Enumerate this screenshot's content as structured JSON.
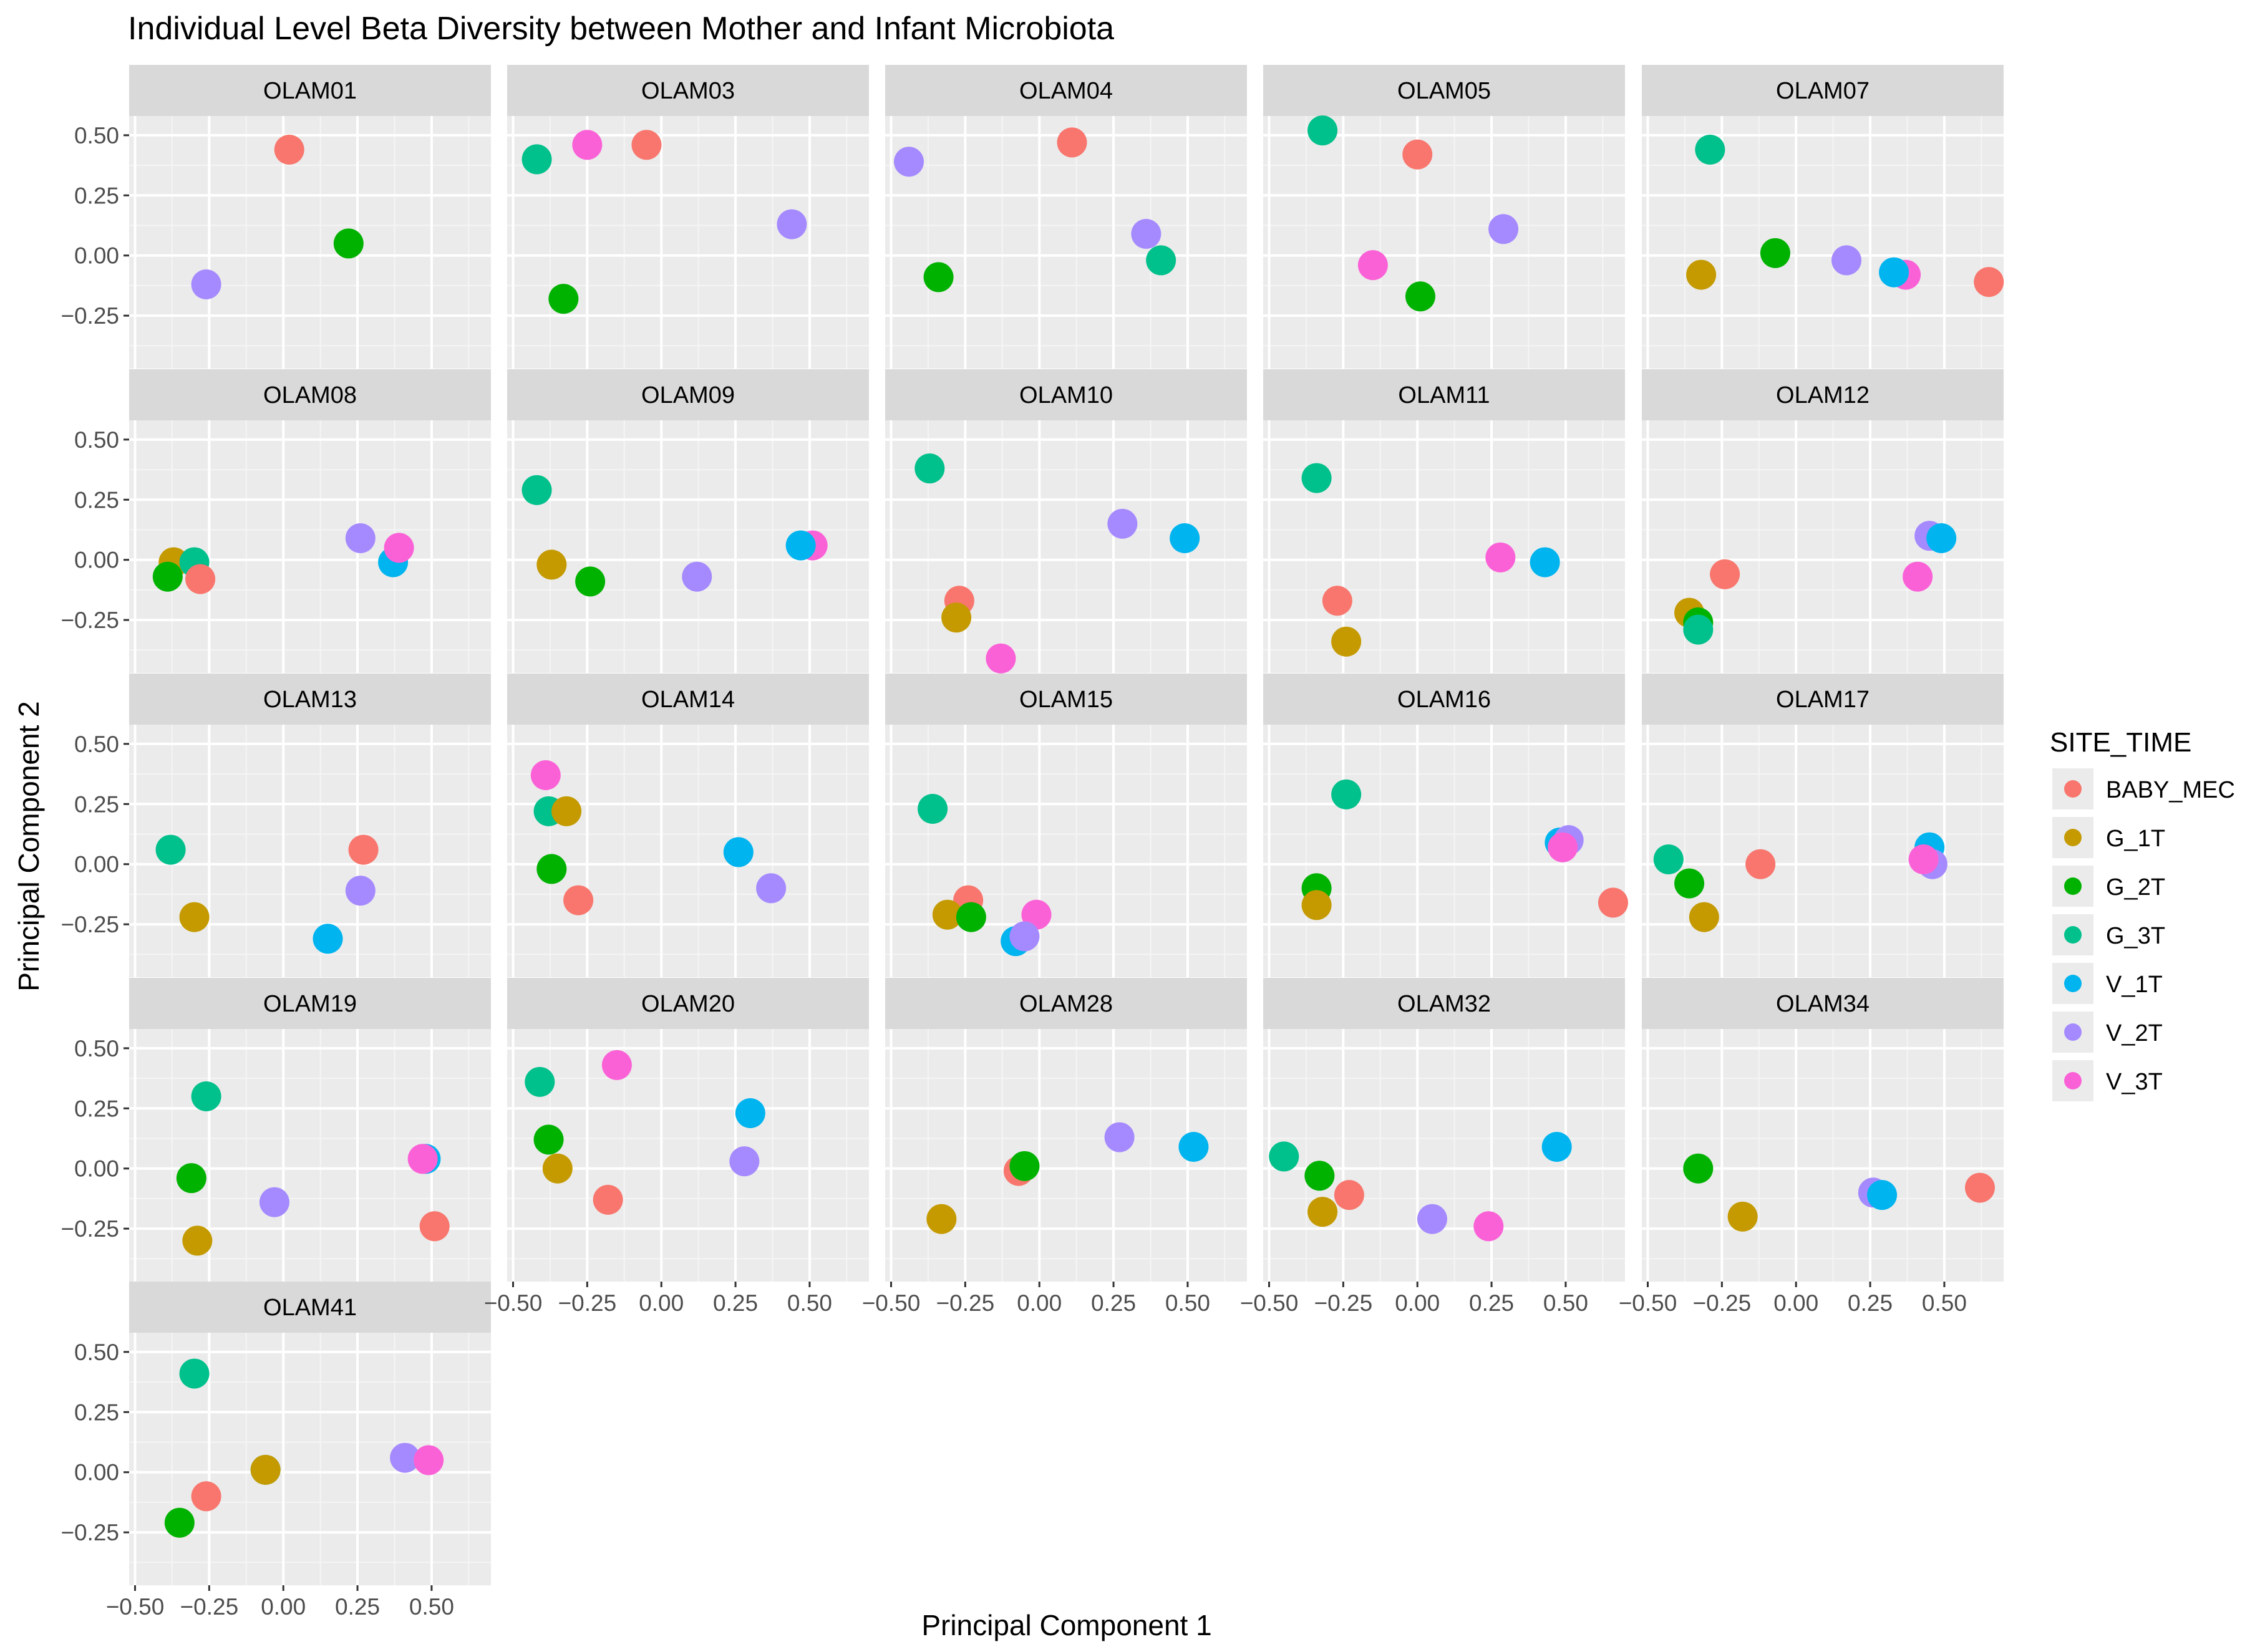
{
  "chart_data": {
    "type": "scatter",
    "title": "Individual Level Beta Diversity between Mother and Infant Microbiota",
    "xlabel": "Principal Component 1",
    "ylabel": "Principal Component 2",
    "xlim": [
      -0.52,
      0.7
    ],
    "ylim": [
      -0.47,
      0.58
    ],
    "xticks": [
      -0.5,
      -0.25,
      0,
      0.25,
      0.5
    ],
    "xtick_labels": [
      "−0.50",
      "−0.25",
      "0.00",
      "0.25",
      "0.50"
    ],
    "yticks": [
      0.5,
      0.25,
      0,
      -0.25
    ],
    "ytick_labels": [
      "0.50",
      "0.25",
      "0.00",
      "−0.25"
    ],
    "legend": {
      "title": "SITE_TIME",
      "position": "right",
      "entries": [
        {
          "label": "BABY_MEC",
          "color": "#F8766D"
        },
        {
          "label": "G_1T",
          "color": "#C49A00"
        },
        {
          "label": "G_2T",
          "color": "#00B200"
        },
        {
          "label": "G_3T",
          "color": "#00C08B"
        },
        {
          "label": "V_1T",
          "color": "#00B4EF"
        },
        {
          "label": "V_2T",
          "color": "#A58AFF"
        },
        {
          "label": "V_3T",
          "color": "#FB61D7"
        }
      ]
    },
    "panels": [
      {
        "name": "OLAM01",
        "points": [
          {
            "g": "BABY_MEC",
            "x": 0.02,
            "y": 0.44
          },
          {
            "g": "G_2T",
            "x": 0.22,
            "y": 0.05
          },
          {
            "g": "V_2T",
            "x": -0.26,
            "y": -0.12
          }
        ]
      },
      {
        "name": "OLAM03",
        "points": [
          {
            "g": "G_3T",
            "x": -0.42,
            "y": 0.4
          },
          {
            "g": "V_3T",
            "x": -0.25,
            "y": 0.46
          },
          {
            "g": "BABY_MEC",
            "x": -0.05,
            "y": 0.46
          },
          {
            "g": "G_2T",
            "x": -0.33,
            "y": -0.18
          },
          {
            "g": "V_2T",
            "x": 0.44,
            "y": 0.13
          }
        ]
      },
      {
        "name": "OLAM04",
        "points": [
          {
            "g": "V_2T",
            "x": -0.44,
            "y": 0.39
          },
          {
            "g": "BABY_MEC",
            "x": 0.11,
            "y": 0.47
          },
          {
            "g": "G_2T",
            "x": -0.34,
            "y": -0.09
          },
          {
            "g": "V_2T",
            "x": 0.36,
            "y": 0.09
          },
          {
            "g": "G_3T",
            "x": 0.41,
            "y": -0.02
          }
        ]
      },
      {
        "name": "OLAM05",
        "points": [
          {
            "g": "G_3T",
            "x": -0.32,
            "y": 0.52
          },
          {
            "g": "BABY_MEC",
            "x": 0.0,
            "y": 0.42
          },
          {
            "g": "V_3T",
            "x": -0.15,
            "y": -0.04
          },
          {
            "g": "G_2T",
            "x": 0.01,
            "y": -0.17
          },
          {
            "g": "V_2T",
            "x": 0.29,
            "y": 0.11
          }
        ]
      },
      {
        "name": "OLAM07",
        "points": [
          {
            "g": "G_3T",
            "x": -0.29,
            "y": 0.44
          },
          {
            "g": "G_1T",
            "x": -0.32,
            "y": -0.08
          },
          {
            "g": "G_2T",
            "x": -0.07,
            "y": 0.01
          },
          {
            "g": "V_2T",
            "x": 0.17,
            "y": -0.02
          },
          {
            "g": "V_3T",
            "x": 0.37,
            "y": -0.08
          },
          {
            "g": "V_1T",
            "x": 0.33,
            "y": -0.07
          },
          {
            "g": "BABY_MEC",
            "x": 0.65,
            "y": -0.11
          }
        ]
      },
      {
        "name": "OLAM08",
        "points": [
          {
            "g": "G_1T",
            "x": -0.37,
            "y": -0.01
          },
          {
            "g": "G_3T",
            "x": -0.3,
            "y": -0.01
          },
          {
            "g": "G_2T",
            "x": -0.39,
            "y": -0.07
          },
          {
            "g": "BABY_MEC",
            "x": -0.28,
            "y": -0.08
          },
          {
            "g": "V_2T",
            "x": 0.26,
            "y": 0.09
          },
          {
            "g": "V_1T",
            "x": 0.37,
            "y": -0.01
          },
          {
            "g": "V_3T",
            "x": 0.39,
            "y": 0.05
          }
        ]
      },
      {
        "name": "OLAM09",
        "points": [
          {
            "g": "G_3T",
            "x": -0.42,
            "y": 0.29
          },
          {
            "g": "G_1T",
            "x": -0.37,
            "y": -0.02
          },
          {
            "g": "G_2T",
            "x": -0.24,
            "y": -0.09
          },
          {
            "g": "V_2T",
            "x": 0.12,
            "y": -0.07
          },
          {
            "g": "V_3T",
            "x": 0.51,
            "y": 0.06
          },
          {
            "g": "V_1T",
            "x": 0.47,
            "y": 0.06
          }
        ]
      },
      {
        "name": "OLAM10",
        "points": [
          {
            "g": "G_3T",
            "x": -0.37,
            "y": 0.38
          },
          {
            "g": "BABY_MEC",
            "x": -0.27,
            "y": -0.17
          },
          {
            "g": "G_1T",
            "x": -0.28,
            "y": -0.24
          },
          {
            "g": "V_3T",
            "x": -0.13,
            "y": -0.41
          },
          {
            "g": "V_2T",
            "x": 0.28,
            "y": 0.15
          },
          {
            "g": "V_1T",
            "x": 0.49,
            "y": 0.09
          }
        ]
      },
      {
        "name": "OLAM11",
        "points": [
          {
            "g": "G_3T",
            "x": -0.34,
            "y": 0.34
          },
          {
            "g": "BABY_MEC",
            "x": -0.27,
            "y": -0.17
          },
          {
            "g": "G_1T",
            "x": -0.24,
            "y": -0.34
          },
          {
            "g": "V_3T",
            "x": 0.28,
            "y": 0.01
          },
          {
            "g": "V_1T",
            "x": 0.43,
            "y": -0.01
          }
        ]
      },
      {
        "name": "OLAM12",
        "points": [
          {
            "g": "BABY_MEC",
            "x": -0.24,
            "y": -0.06
          },
          {
            "g": "G_1T",
            "x": -0.36,
            "y": -0.22
          },
          {
            "g": "G_2T",
            "x": -0.33,
            "y": -0.26
          },
          {
            "g": "G_3T",
            "x": -0.33,
            "y": -0.29
          },
          {
            "g": "V_2T",
            "x": 0.45,
            "y": 0.1
          },
          {
            "g": "V_1T",
            "x": 0.49,
            "y": 0.09
          },
          {
            "g": "V_3T",
            "x": 0.41,
            "y": -0.07
          }
        ]
      },
      {
        "name": "OLAM13",
        "points": [
          {
            "g": "G_3T",
            "x": -0.38,
            "y": 0.06
          },
          {
            "g": "G_1T",
            "x": -0.3,
            "y": -0.22
          },
          {
            "g": "BABY_MEC",
            "x": 0.27,
            "y": 0.06
          },
          {
            "g": "V_2T",
            "x": 0.26,
            "y": -0.11
          },
          {
            "g": "V_1T",
            "x": 0.15,
            "y": -0.31
          }
        ]
      },
      {
        "name": "OLAM14",
        "points": [
          {
            "g": "V_3T",
            "x": -0.39,
            "y": 0.37
          },
          {
            "g": "G_3T",
            "x": -0.38,
            "y": 0.22
          },
          {
            "g": "G_1T",
            "x": -0.32,
            "y": 0.22
          },
          {
            "g": "G_2T",
            "x": -0.37,
            "y": -0.02
          },
          {
            "g": "BABY_MEC",
            "x": -0.28,
            "y": -0.15
          },
          {
            "g": "V_1T",
            "x": 0.26,
            "y": 0.05
          },
          {
            "g": "V_2T",
            "x": 0.37,
            "y": -0.1
          }
        ]
      },
      {
        "name": "OLAM15",
        "points": [
          {
            "g": "G_3T",
            "x": -0.36,
            "y": 0.23
          },
          {
            "g": "BABY_MEC",
            "x": -0.24,
            "y": -0.15
          },
          {
            "g": "G_1T",
            "x": -0.31,
            "y": -0.21
          },
          {
            "g": "G_2T",
            "x": -0.23,
            "y": -0.22
          },
          {
            "g": "V_3T",
            "x": -0.01,
            "y": -0.21
          },
          {
            "g": "V_1T",
            "x": -0.08,
            "y": -0.32
          },
          {
            "g": "V_2T",
            "x": -0.05,
            "y": -0.3
          }
        ]
      },
      {
        "name": "OLAM16",
        "points": [
          {
            "g": "G_3T",
            "x": -0.24,
            "y": 0.29
          },
          {
            "g": "G_2T",
            "x": -0.34,
            "y": -0.1
          },
          {
            "g": "G_1T",
            "x": -0.34,
            "y": -0.17
          },
          {
            "g": "V_1T",
            "x": 0.48,
            "y": 0.09
          },
          {
            "g": "V_2T",
            "x": 0.51,
            "y": 0.1
          },
          {
            "g": "V_3T",
            "x": 0.49,
            "y": 0.07
          },
          {
            "g": "BABY_MEC",
            "x": 0.66,
            "y": -0.16
          }
        ]
      },
      {
        "name": "OLAM17",
        "points": [
          {
            "g": "G_3T",
            "x": -0.43,
            "y": 0.02
          },
          {
            "g": "G_2T",
            "x": -0.36,
            "y": -0.08
          },
          {
            "g": "G_1T",
            "x": -0.31,
            "y": -0.22
          },
          {
            "g": "BABY_MEC",
            "x": -0.12,
            "y": 0.0
          },
          {
            "g": "V_1T",
            "x": 0.45,
            "y": 0.07
          },
          {
            "g": "V_2T",
            "x": 0.46,
            "y": 0.0
          },
          {
            "g": "V_3T",
            "x": 0.43,
            "y": 0.02
          }
        ]
      },
      {
        "name": "OLAM19",
        "points": [
          {
            "g": "G_3T",
            "x": -0.26,
            "y": 0.3
          },
          {
            "g": "G_2T",
            "x": -0.31,
            "y": -0.04
          },
          {
            "g": "G_1T",
            "x": -0.29,
            "y": -0.3
          },
          {
            "g": "V_2T",
            "x": -0.03,
            "y": -0.14
          },
          {
            "g": "V_1T",
            "x": 0.48,
            "y": 0.04
          },
          {
            "g": "V_3T",
            "x": 0.47,
            "y": 0.04
          },
          {
            "g": "BABY_MEC",
            "x": 0.51,
            "y": -0.24
          }
        ]
      },
      {
        "name": "OLAM20",
        "points": [
          {
            "g": "G_3T",
            "x": -0.41,
            "y": 0.36
          },
          {
            "g": "V_3T",
            "x": -0.15,
            "y": 0.43
          },
          {
            "g": "G_2T",
            "x": -0.38,
            "y": 0.12
          },
          {
            "g": "G_1T",
            "x": -0.35,
            "y": 0.0
          },
          {
            "g": "BABY_MEC",
            "x": -0.18,
            "y": -0.13
          },
          {
            "g": "V_1T",
            "x": 0.3,
            "y": 0.23
          },
          {
            "g": "V_2T",
            "x": 0.28,
            "y": 0.03
          }
        ]
      },
      {
        "name": "OLAM28",
        "points": [
          {
            "g": "G_1T",
            "x": -0.33,
            "y": -0.21
          },
          {
            "g": "BABY_MEC",
            "x": -0.07,
            "y": -0.01
          },
          {
            "g": "G_2T",
            "x": -0.05,
            "y": 0.01
          },
          {
            "g": "V_2T",
            "x": 0.27,
            "y": 0.13
          },
          {
            "g": "V_1T",
            "x": 0.52,
            "y": 0.09
          }
        ]
      },
      {
        "name": "OLAM32",
        "points": [
          {
            "g": "G_3T",
            "x": -0.45,
            "y": 0.05
          },
          {
            "g": "G_2T",
            "x": -0.33,
            "y": -0.03
          },
          {
            "g": "G_1T",
            "x": -0.32,
            "y": -0.18
          },
          {
            "g": "BABY_MEC",
            "x": -0.23,
            "y": -0.11
          },
          {
            "g": "V_2T",
            "x": 0.05,
            "y": -0.21
          },
          {
            "g": "V_3T",
            "x": 0.24,
            "y": -0.24
          },
          {
            "g": "V_1T",
            "x": 0.47,
            "y": 0.09
          }
        ]
      },
      {
        "name": "OLAM34",
        "points": [
          {
            "g": "G_2T",
            "x": -0.33,
            "y": 0.0
          },
          {
            "g": "G_1T",
            "x": -0.18,
            "y": -0.2
          },
          {
            "g": "V_2T",
            "x": 0.26,
            "y": -0.1
          },
          {
            "g": "V_1T",
            "x": 0.29,
            "y": -0.11
          },
          {
            "g": "BABY_MEC",
            "x": 0.62,
            "y": -0.08
          }
        ]
      },
      {
        "name": "OLAM41",
        "points": [
          {
            "g": "G_3T",
            "x": -0.3,
            "y": 0.41
          },
          {
            "g": "G_3T",
            "x": -0.06,
            "y": 0.01
          },
          {
            "g": "G_1T",
            "x": -0.06,
            "y": 0.01
          },
          {
            "g": "BABY_MEC",
            "x": -0.26,
            "y": -0.1
          },
          {
            "g": "G_2T",
            "x": -0.35,
            "y": -0.21
          },
          {
            "g": "V_2T",
            "x": 0.41,
            "y": 0.06
          },
          {
            "g": "V_3T",
            "x": 0.49,
            "y": 0.05
          }
        ]
      }
    ]
  }
}
